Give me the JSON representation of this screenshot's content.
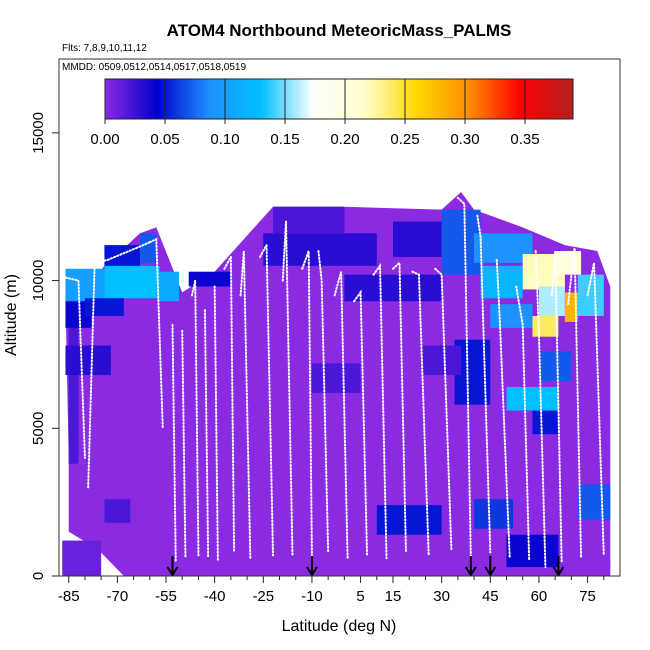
{
  "chart_data": {
    "type": "heatmap",
    "title": "ATOM4 Northbound MeteoricMass_PALMS",
    "subtitle_flights": "Flts: 7,8,9,10,11,12",
    "subtitle_dates": "MMDD: 0509,0512,0514,0517,0518,0519",
    "xlabel": "Latitude (deg N)",
    "ylabel": "Altitude (m)",
    "xlim": [
      -88,
      85
    ],
    "ylim": [
      0,
      17500
    ],
    "x_ticks": [
      -85,
      -70,
      -55,
      -40,
      -25,
      -10,
      5,
      15,
      30,
      45,
      60,
      75
    ],
    "x_tick_labels": [
      "-85",
      "-70",
      "-55",
      "-40",
      "-25",
      "-10",
      "5",
      "15",
      "30",
      "45",
      "60",
      "75"
    ],
    "y_ticks": [
      0,
      5000,
      10000,
      15000
    ],
    "y_tick_labels": [
      "0",
      "5000",
      "10000",
      "15000"
    ],
    "colorbar": {
      "range": [
        0.0,
        0.39
      ],
      "ticks": [
        0.0,
        0.05,
        0.1,
        0.15,
        0.2,
        0.25,
        0.3,
        0.35
      ],
      "tick_labels": [
        "0.00",
        "0.05",
        "0.10",
        "0.15",
        "0.20",
        "0.25",
        "0.30",
        "0.35"
      ],
      "colors": [
        "#8a2be2",
        "#0000cd",
        "#1e90ff",
        "#00bfff",
        "#ffffff",
        "#ffffcc",
        "#ffd700",
        "#ff8c00",
        "#ff0000",
        "#b22222"
      ]
    },
    "cells": [
      {
        "lat": [
          -87,
          -75
        ],
        "alt": [
          0,
          1200
        ],
        "value": 0.01
      },
      {
        "lat": [
          -85,
          -82
        ],
        "alt": [
          3800,
          9800
        ],
        "value": 0.02
      },
      {
        "lat": [
          -86,
          -78
        ],
        "alt": [
          8400,
          9600
        ],
        "value": 0.04
      },
      {
        "lat": [
          -86,
          -74
        ],
        "alt": [
          9300,
          10400
        ],
        "value": 0.1
      },
      {
        "lat": [
          -74,
          -57
        ],
        "alt": [
          9400,
          10500
        ],
        "value": 0.13
      },
      {
        "lat": [
          -74,
          -63
        ],
        "alt": [
          10500,
          11200
        ],
        "value": 0.05
      },
      {
        "lat": [
          -63,
          -58
        ],
        "alt": [
          10600,
          11600
        ],
        "value": 0.07
      },
      {
        "lat": [
          -57,
          -51
        ],
        "alt": [
          9300,
          10300
        ],
        "value": 0.11
      },
      {
        "lat": [
          -86,
          -72
        ],
        "alt": [
          6800,
          7800
        ],
        "value": 0.03
      },
      {
        "lat": [
          -80,
          -68
        ],
        "alt": [
          8800,
          9400
        ],
        "value": 0.05
      },
      {
        "lat": [
          -25,
          10
        ],
        "alt": [
          10500,
          11600
        ],
        "value": 0.03
      },
      {
        "lat": [
          -22,
          0
        ],
        "alt": [
          11600,
          12500
        ],
        "value": 0.02
      },
      {
        "lat": [
          -48,
          -35
        ],
        "alt": [
          9800,
          10300
        ],
        "value": 0.04
      },
      {
        "lat": [
          0,
          30
        ],
        "alt": [
          9300,
          10200
        ],
        "value": 0.03
      },
      {
        "lat": [
          15,
          35
        ],
        "alt": [
          10800,
          12000
        ],
        "value": 0.03
      },
      {
        "lat": [
          30,
          42
        ],
        "alt": [
          10200,
          12400
        ],
        "value": 0.07
      },
      {
        "lat": [
          40,
          58
        ],
        "alt": [
          10600,
          11600
        ],
        "value": 0.09
      },
      {
        "lat": [
          42,
          55
        ],
        "alt": [
          9400,
          10500
        ],
        "value": 0.12
      },
      {
        "lat": [
          55,
          68
        ],
        "alt": [
          9700,
          10900
        ],
        "value": 0.22
      },
      {
        "lat": [
          65,
          73
        ],
        "alt": [
          10200,
          11000
        ],
        "value": 0.2
      },
      {
        "lat": [
          60,
          68
        ],
        "alt": [
          8800,
          9800
        ],
        "value": 0.16
      },
      {
        "lat": [
          68,
          72
        ],
        "alt": [
          8600,
          9600
        ],
        "value": 0.28
      },
      {
        "lat": [
          72,
          80
        ],
        "alt": [
          8800,
          10200
        ],
        "value": 0.14
      },
      {
        "lat": [
          58,
          66
        ],
        "alt": [
          8100,
          8800
        ],
        "value": 0.24
      },
      {
        "lat": [
          45,
          58
        ],
        "alt": [
          8400,
          9200
        ],
        "value": 0.09
      },
      {
        "lat": [
          34,
          45
        ],
        "alt": [
          5800,
          8000
        ],
        "value": 0.05
      },
      {
        "lat": [
          50,
          66
        ],
        "alt": [
          5600,
          6400
        ],
        "value": 0.13
      },
      {
        "lat": [
          60,
          70
        ],
        "alt": [
          6600,
          7600
        ],
        "value": 0.07
      },
      {
        "lat": [
          58,
          66
        ],
        "alt": [
          4800,
          5600
        ],
        "value": 0.05
      },
      {
        "lat": [
          40,
          52
        ],
        "alt": [
          1600,
          2600
        ],
        "value": 0.06
      },
      {
        "lat": [
          10,
          30
        ],
        "alt": [
          1400,
          2400
        ],
        "value": 0.05
      },
      {
        "lat": [
          72,
          82
        ],
        "alt": [
          1900,
          3100
        ],
        "value": 0.07
      },
      {
        "lat": [
          50,
          66
        ],
        "alt": [
          300,
          1400
        ],
        "value": 0.04
      },
      {
        "lat": [
          -74,
          -66
        ],
        "alt": [
          1800,
          2600
        ],
        "value": 0.02
      },
      {
        "lat": [
          -10,
          5
        ],
        "alt": [
          6200,
          7200
        ],
        "value": 0.02
      },
      {
        "lat": [
          24,
          36
        ],
        "alt": [
          6800,
          7800
        ],
        "value": 0.02
      }
    ],
    "flight_paths": [
      {
        "lat": [
          -86,
          -82,
          -80
        ],
        "alt": [
          10100,
          10000,
          4000
        ]
      },
      {
        "lat": [
          -79,
          -77,
          -73,
          -62,
          -60
        ],
        "alt": [
          3000,
          10600,
          10700,
          11200,
          11300
        ]
      },
      {
        "lat": [
          -60,
          -58,
          -56
        ],
        "alt": [
          11300,
          11400,
          5000
        ]
      },
      {
        "lat": [
          -53,
          -52
        ],
        "alt": [
          8500,
          500
        ]
      },
      {
        "lat": [
          -50,
          -49
        ],
        "alt": [
          8300,
          600
        ]
      },
      {
        "lat": [
          -47,
          -46,
          -45
        ],
        "alt": [
          9500,
          10000,
          700
        ]
      },
      {
        "lat": [
          -43,
          -42
        ],
        "alt": [
          9000,
          600
        ]
      },
      {
        "lat": [
          -40,
          -39
        ],
        "alt": [
          9800,
          500
        ]
      },
      {
        "lat": [
          -37,
          -35,
          -34
        ],
        "alt": [
          10400,
          10800,
          800
        ]
      },
      {
        "lat": [
          -32,
          -31,
          -29
        ],
        "alt": [
          9500,
          11000,
          600
        ]
      },
      {
        "lat": [
          -26,
          -24,
          -22
        ],
        "alt": [
          10800,
          11200,
          700
        ]
      },
      {
        "lat": [
          -19,
          -18,
          -16
        ],
        "alt": [
          10000,
          12000,
          700
        ]
      },
      {
        "lat": [
          -13,
          -11,
          -10
        ],
        "alt": [
          10400,
          11000,
          600
        ]
      },
      {
        "lat": [
          -8,
          -7,
          -5
        ],
        "alt": [
          11000,
          10000,
          800
        ]
      },
      {
        "lat": [
          -3,
          -1,
          1
        ],
        "alt": [
          9500,
          10300,
          600
        ]
      },
      {
        "lat": [
          3,
          5,
          7
        ],
        "alt": [
          9300,
          9600,
          700
        ]
      },
      {
        "lat": [
          9,
          11,
          13
        ],
        "alt": [
          10200,
          10500,
          600
        ]
      },
      {
        "lat": [
          15,
          17,
          19
        ],
        "alt": [
          10400,
          10600,
          800
        ]
      },
      {
        "lat": [
          21,
          23,
          26
        ],
        "alt": [
          10300,
          10200,
          700
        ]
      },
      {
        "lat": [
          28,
          30,
          33
        ],
        "alt": [
          10400,
          10200,
          900
        ]
      },
      {
        "lat": [
          35,
          37,
          39
        ],
        "alt": [
          12800,
          12600,
          600
        ]
      },
      {
        "lat": [
          41,
          42,
          45
        ],
        "alt": [
          12200,
          11500,
          800
        ]
      },
      {
        "lat": [
          47,
          48,
          51
        ],
        "alt": [
          10700,
          8500,
          600
        ]
      },
      {
        "lat": [
          53,
          55,
          57
        ],
        "alt": [
          9800,
          8500,
          500
        ]
      },
      {
        "lat": [
          59,
          60,
          62
        ],
        "alt": [
          11000,
          8200,
          300
        ]
      },
      {
        "lat": [
          64,
          65,
          67
        ],
        "alt": [
          9500,
          11000,
          500
        ]
      },
      {
        "lat": [
          69,
          71,
          73
        ],
        "alt": [
          9200,
          11100,
          600
        ]
      },
      {
        "lat": [
          75,
          77,
          80
        ],
        "alt": [
          9500,
          10600,
          700
        ]
      }
    ],
    "arrow_markers_lat": [
      -53,
      -10,
      39,
      45,
      66
    ]
  }
}
